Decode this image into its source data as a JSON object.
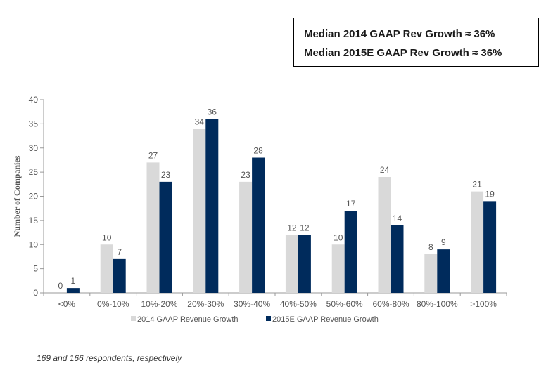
{
  "median_box": {
    "line1": "Median 2014 GAAP Rev Growth ≈ 36%",
    "line2": "Median 2015E GAAP Rev Growth ≈ 36%"
  },
  "footnote": "169 and 166 respondents, respectively",
  "colors": {
    "series1": "#d9d9d9",
    "series2": "#002b5c"
  },
  "chart_data": {
    "type": "bar",
    "categories": [
      "<0%",
      "0%-10%",
      "10%-20%",
      "20%-30%",
      "30%-40%",
      "40%-50%",
      "50%-60%",
      "60%-80%",
      "80%-100%",
      ">100%"
    ],
    "series": [
      {
        "name": "2014 GAAP Revenue Growth",
        "values": [
          0,
          10,
          27,
          34,
          23,
          12,
          10,
          24,
          8,
          21
        ]
      },
      {
        "name": "2015E GAAP Revenue Growth",
        "values": [
          1,
          7,
          23,
          36,
          28,
          12,
          17,
          14,
          9,
          19
        ]
      }
    ],
    "ylabel": "Number of Companies",
    "ylim": [
      0,
      40
    ],
    "yticks": [
      0,
      5,
      10,
      15,
      20,
      25,
      30,
      35,
      40
    ],
    "grid": false,
    "legend": "bottom"
  }
}
